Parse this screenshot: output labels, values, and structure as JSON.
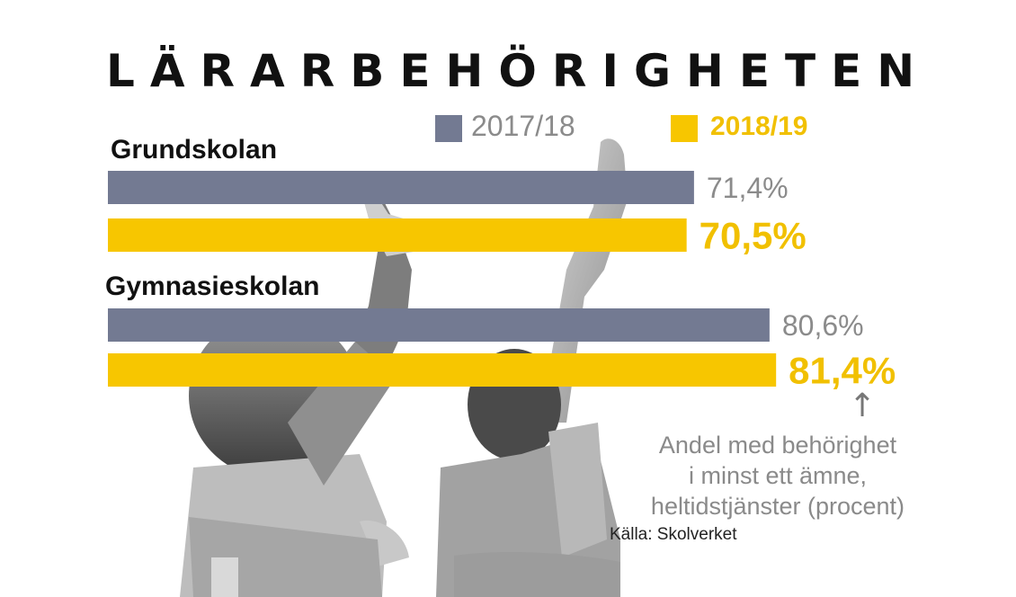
{
  "title": "LÄRARBEHÖRIGHETEN",
  "colors": {
    "series_2017": "#737a92",
    "series_2018": "#f7c600",
    "title": "#111111",
    "note": "#8a8a8a"
  },
  "legend": [
    {
      "label": "2017/18",
      "color": "#737a92"
    },
    {
      "label": "2018/19",
      "color": "#f7c600"
    }
  ],
  "note": {
    "arrow": "↑",
    "line1": "Andel med behörighet",
    "line2": "i minst ett ämne,",
    "line3": "heltidstjänster (procent)"
  },
  "source": "Källa: Skolverket",
  "chart_data": {
    "type": "bar",
    "orientation": "horizontal",
    "categories": [
      "Grundskolan",
      "Gymnasieskolan"
    ],
    "series": [
      {
        "name": "2017/18",
        "values": [
          71.4,
          80.6
        ],
        "labels": [
          "71,4%",
          "80,6%"
        ]
      },
      {
        "name": "2018/19",
        "values": [
          70.5,
          81.4
        ],
        "labels": [
          "70,5%",
          "81,4%"
        ]
      }
    ],
    "unit": "%",
    "xlim": [
      0,
      100
    ],
    "grid": false,
    "legend": "top"
  }
}
